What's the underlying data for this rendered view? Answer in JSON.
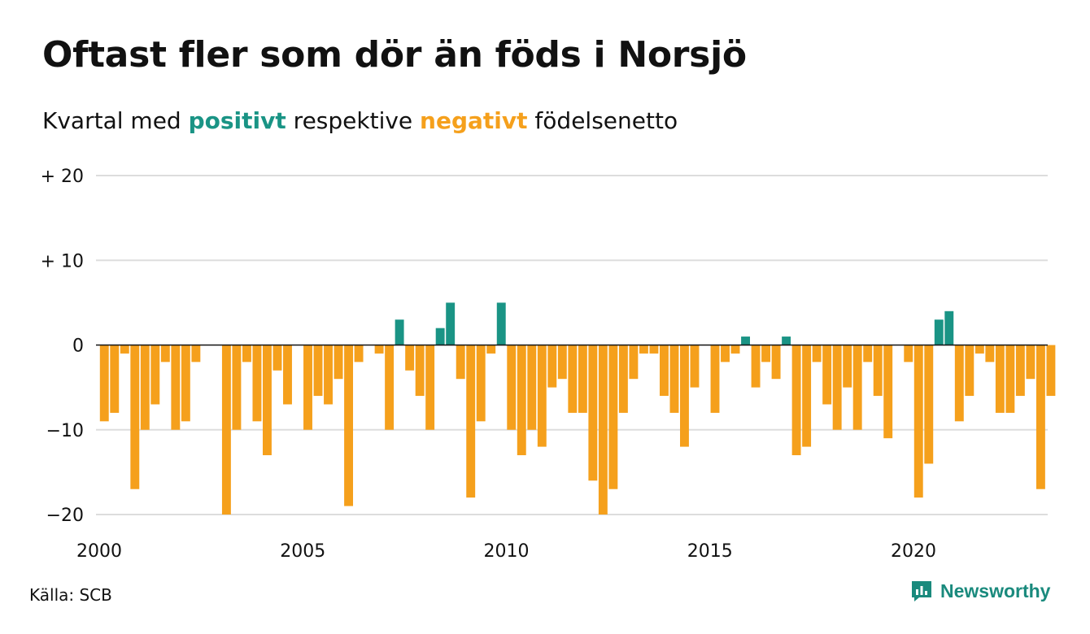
{
  "title": "Oftast fler som dör än föds i Norsjö",
  "subtitle": {
    "prefix": "Kvartal med ",
    "positive": "positivt",
    "middle": " respektive ",
    "negative": "negativt",
    "suffix": " födelsenetto"
  },
  "source": "Källa: SCB",
  "brand": "Newsworthy",
  "brand_icon": "bar-chart-speech-bubble-icon",
  "colors": {
    "positive": "#1a9485",
    "negative": "#f5a01c",
    "grid": "#dddddd",
    "brand": "#1a8a7d"
  },
  "chart_data": {
    "type": "bar",
    "x_start": 2000,
    "x_step": 0.25,
    "xticks": [
      2000,
      2005,
      2010,
      2015,
      2020
    ],
    "ylim": [
      -20,
      20
    ],
    "yticks": [
      {
        "value": 20,
        "label": "+ 20"
      },
      {
        "value": 10,
        "label": "+ 10"
      },
      {
        "value": 0,
        "label": "0"
      },
      {
        "value": -10,
        "label": "−10"
      },
      {
        "value": -20,
        "label": "−20"
      }
    ],
    "grid": true,
    "values": [
      -9,
      -8,
      -1,
      -17,
      -10,
      -7,
      -2,
      -10,
      -9,
      -2,
      0,
      0,
      -20,
      -10,
      -2,
      -9,
      -13,
      -3,
      -7,
      0,
      -10,
      -6,
      -7,
      -4,
      -19,
      -2,
      0,
      -1,
      -10,
      3,
      -3,
      -6,
      -10,
      2,
      5,
      -4,
      -18,
      -9,
      -1,
      5,
      -10,
      -13,
      -10,
      -12,
      -5,
      -4,
      -8,
      -8,
      -16,
      -20,
      -17,
      -8,
      -4,
      -1,
      -1,
      -6,
      -8,
      -12,
      -5,
      0,
      -8,
      -2,
      -1,
      1,
      -5,
      -2,
      -4,
      1,
      -13,
      -12,
      -2,
      -7,
      -10,
      -5,
      -10,
      -2,
      -6,
      -11,
      0,
      -2,
      -18,
      -14,
      3,
      4,
      -9,
      -6,
      -1,
      -2,
      -8,
      -8,
      -6,
      -4,
      -17,
      -6
    ]
  }
}
